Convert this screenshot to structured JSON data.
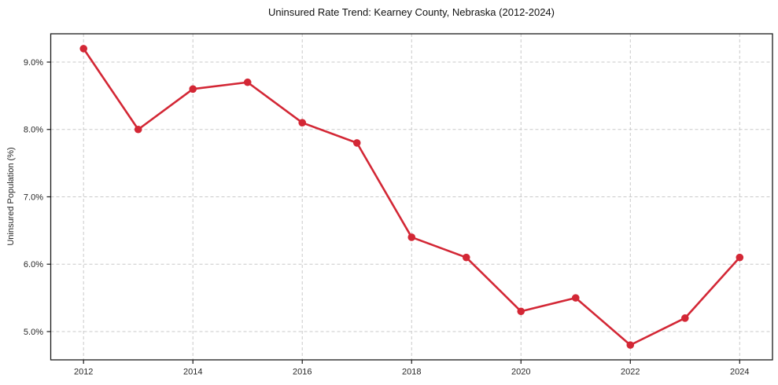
{
  "figure": {
    "background": "#ffffff"
  },
  "chart_data": {
    "type": "line",
    "title": "Uninsured Rate Trend: Kearney County, Nebraska (2012-2024)",
    "xlabel": "",
    "ylabel": "Uninsured Population (%)",
    "x": [
      2012,
      2013,
      2014,
      2015,
      2016,
      2017,
      2018,
      2019,
      2020,
      2021,
      2022,
      2023,
      2024
    ],
    "series": [
      {
        "name": "Uninsured rate",
        "values": [
          9.2,
          8.0,
          8.6,
          8.7,
          8.1,
          7.8,
          6.4,
          6.1,
          5.3,
          5.5,
          4.8,
          5.2,
          6.1
        ]
      }
    ],
    "xlim": [
      2011.4,
      2024.6
    ],
    "ylim": [
      4.58,
      9.42
    ],
    "x_ticks": [
      2012,
      2014,
      2016,
      2018,
      2020,
      2022,
      2024
    ],
    "y_ticks": [
      5.0,
      6.0,
      7.0,
      8.0,
      9.0
    ],
    "y_tick_labels": [
      "5.0%",
      "6.0%",
      "7.0%",
      "8.0%",
      "9.0%"
    ],
    "grid": "dashed",
    "legend": "none",
    "marker": "circle",
    "line_width": 2.6,
    "marker_radius": 4.8,
    "colors": {
      "line": "#d32735",
      "marker": "#d32735",
      "grid": "#c9c9c9",
      "axis": "#1a1a1a",
      "tick_text": "#262626",
      "title_text": "#111111",
      "background": "#ffffff"
    }
  }
}
